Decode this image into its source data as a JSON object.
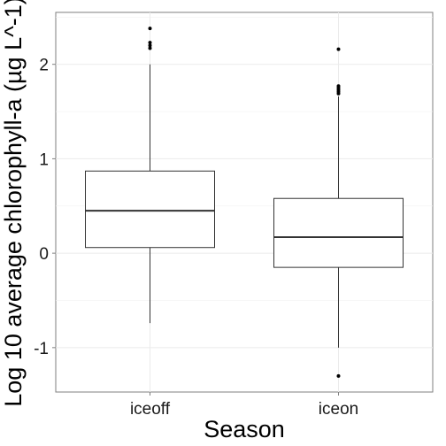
{
  "chart_data": {
    "type": "boxplot",
    "xlabel": "Season",
    "ylabel": "Log 10 average chlorophyll-a (µg L^-1)",
    "categories": [
      "iceoff",
      "iceon"
    ],
    "boxes": [
      {
        "category": "iceoff",
        "whisker_low": -0.74,
        "q1": 0.06,
        "median": 0.45,
        "q3": 0.87,
        "whisker_high": 2.0,
        "outliers": [
          2.17,
          2.2,
          2.23,
          2.38
        ]
      },
      {
        "category": "iceon",
        "whisker_low": -1.0,
        "q1": -0.15,
        "median": 0.17,
        "q3": 0.58,
        "whisker_high": 1.66,
        "outliers": [
          -1.3,
          1.69,
          1.71,
          1.73,
          1.75,
          1.77,
          2.16
        ]
      }
    ],
    "yticks": [
      -1,
      0,
      1,
      2
    ],
    "ytick_labels": [
      "-1",
      "0",
      "1",
      "2"
    ],
    "ylim": [
      -1.47,
      2.55
    ],
    "grid": true,
    "legend": "none"
  }
}
